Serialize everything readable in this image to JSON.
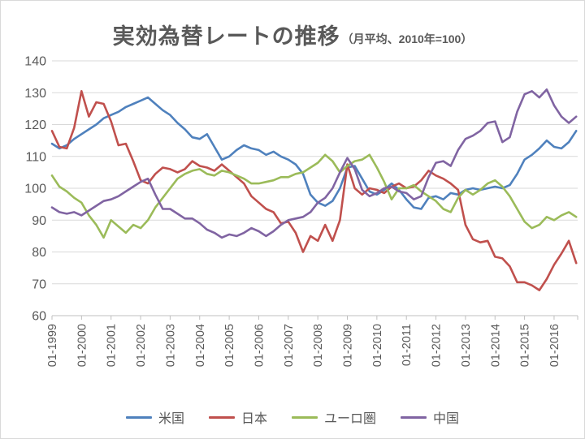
{
  "header": {
    "title": "実効為替レートの推移",
    "subtitle": "（月平均、2010年=100）"
  },
  "chart_data": {
    "type": "line",
    "title": "実効為替レートの推移",
    "subtitle": "（月平均、2010年=100）",
    "xlabel": "",
    "ylabel": "",
    "ylim": [
      60,
      140
    ],
    "y_ticks": [
      60,
      70,
      80,
      90,
      100,
      110,
      120,
      130,
      140
    ],
    "grid": "horizontal",
    "legend_position": "bottom",
    "x_tick_labels": [
      "01-1999",
      "01-2000",
      "01-2001",
      "01-2002",
      "01-2003",
      "01-2004",
      "01-2005",
      "01-2006",
      "01-2007",
      "01-2008",
      "01-2009",
      "01-2010",
      "01-2011",
      "01-2012",
      "01-2013",
      "01-2014",
      "01-2015",
      "01-2016"
    ],
    "x_tick_years": [
      1999,
      2000,
      2001,
      2002,
      2003,
      2004,
      2005,
      2006,
      2007,
      2008,
      2009,
      2010,
      2011,
      2012,
      2013,
      2014,
      2015,
      2016
    ],
    "x_note": "decimal years, monthly data sampled quarterly Jan 1999 - Oct 2016",
    "x": [
      1999,
      1999.25,
      1999.5,
      1999.75,
      2000,
      2000.25,
      2000.5,
      2000.75,
      2001,
      2001.25,
      2001.5,
      2001.75,
      2002,
      2002.25,
      2002.5,
      2002.75,
      2003,
      2003.25,
      2003.5,
      2003.75,
      2004,
      2004.25,
      2004.5,
      2004.75,
      2005,
      2005.25,
      2005.5,
      2005.75,
      2006,
      2006.25,
      2006.5,
      2006.75,
      2007,
      2007.25,
      2007.5,
      2007.75,
      2008,
      2008.25,
      2008.5,
      2008.75,
      2009,
      2009.25,
      2009.5,
      2009.75,
      2010,
      2010.25,
      2010.5,
      2010.75,
      2011,
      2011.25,
      2011.5,
      2011.75,
      2012,
      2012.25,
      2012.5,
      2012.75,
      2013,
      2013.25,
      2013.5,
      2013.75,
      2014,
      2014.25,
      2014.5,
      2014.75,
      2015,
      2015.25,
      2015.5,
      2015.75,
      2016,
      2016.25,
      2016.5,
      2016.75
    ],
    "series": [
      {
        "id": "us",
        "name": "米国",
        "color": "#4F81BD",
        "values": [
          114,
          112.5,
          113.5,
          115.5,
          117,
          118.5,
          120,
          122,
          123,
          124,
          125.5,
          126.5,
          127.5,
          128.5,
          126.5,
          124.5,
          123,
          120.5,
          118.5,
          116,
          115.5,
          117,
          113,
          109,
          110,
          112,
          113.5,
          112.5,
          112,
          110.5,
          111.5,
          110,
          109,
          107.5,
          104.5,
          98,
          95.5,
          94.5,
          96,
          100,
          106.5,
          107,
          103,
          99,
          98,
          99.5,
          101.5,
          99.5,
          96.5,
          94,
          93.5,
          97,
          97.5,
          96.5,
          98.5,
          98,
          99.5,
          100,
          99.5,
          100,
          100.5,
          100,
          101,
          104.5,
          109,
          110.5,
          112.5,
          115,
          113,
          112.5,
          114.5,
          118
        ]
      },
      {
        "id": "japan",
        "name": "日本",
        "color": "#C0504D",
        "values": [
          118,
          113,
          112.5,
          119,
          130.5,
          122.5,
          127,
          126.5,
          121,
          113.5,
          114,
          108.5,
          102.5,
          101.5,
          104.5,
          106.5,
          106,
          105,
          106,
          108.5,
          107,
          106.5,
          105.5,
          107.5,
          105.5,
          103.5,
          101.5,
          97.5,
          95.5,
          93.5,
          92.5,
          89,
          89.5,
          86,
          80,
          85,
          83.5,
          88.5,
          83.5,
          90,
          107.5,
          100,
          98,
          100,
          99.5,
          98.5,
          100.5,
          101.5,
          100,
          100.5,
          102.5,
          105.5,
          104,
          103,
          101.5,
          99.5,
          88.5,
          84,
          83,
          83.5,
          78.5,
          78,
          75.5,
          70.5,
          70.5,
          69.5,
          68,
          71.5,
          76,
          79.5,
          83.5,
          76.5
        ]
      },
      {
        "id": "euro",
        "name": "ユーロ圏",
        "color": "#9BBB59",
        "values": [
          104,
          100.5,
          99,
          97,
          95.5,
          91.5,
          88.5,
          84.5,
          90,
          88,
          86,
          88.5,
          87.5,
          90,
          94,
          97,
          100,
          103,
          104.5,
          105.5,
          106,
          104.5,
          104,
          105.5,
          105,
          104,
          103,
          101.5,
          101.5,
          102,
          102.5,
          103.5,
          103.5,
          104.5,
          105,
          106.5,
          108,
          110.5,
          108.5,
          105,
          107,
          108.5,
          109,
          110.5,
          106.5,
          102,
          96.5,
          100,
          100,
          101,
          99,
          97.5,
          96,
          93.5,
          92.5,
          97,
          99.5,
          98,
          99.5,
          101.5,
          102.5,
          100.5,
          97.5,
          93.5,
          89.5,
          87.5,
          88.5,
          91,
          90,
          91.5,
          92.5,
          91
        ]
      },
      {
        "id": "china",
        "name": "中国",
        "color": "#8064A2",
        "values": [
          94,
          92.5,
          92,
          92.5,
          91.5,
          93,
          94.5,
          96,
          96.5,
          97.5,
          99,
          100.5,
          102,
          103,
          98,
          93.5,
          93.5,
          92,
          90.5,
          90.5,
          89,
          87,
          86,
          84.5,
          85.5,
          85,
          86,
          87.5,
          86.5,
          85,
          86.5,
          88.5,
          90,
          90.5,
          91,
          92.5,
          95.5,
          97,
          100,
          105,
          109.5,
          106,
          99.5,
          97.5,
          98.5,
          100,
          100.5,
          99,
          98.5,
          96.5,
          97.5,
          103.5,
          108,
          108.5,
          107,
          112,
          115.5,
          116.5,
          118,
          120.5,
          121,
          114.5,
          116,
          124,
          129.5,
          130.5,
          128.5,
          131,
          126,
          122.5,
          120.5,
          122.5
        ]
      }
    ]
  }
}
